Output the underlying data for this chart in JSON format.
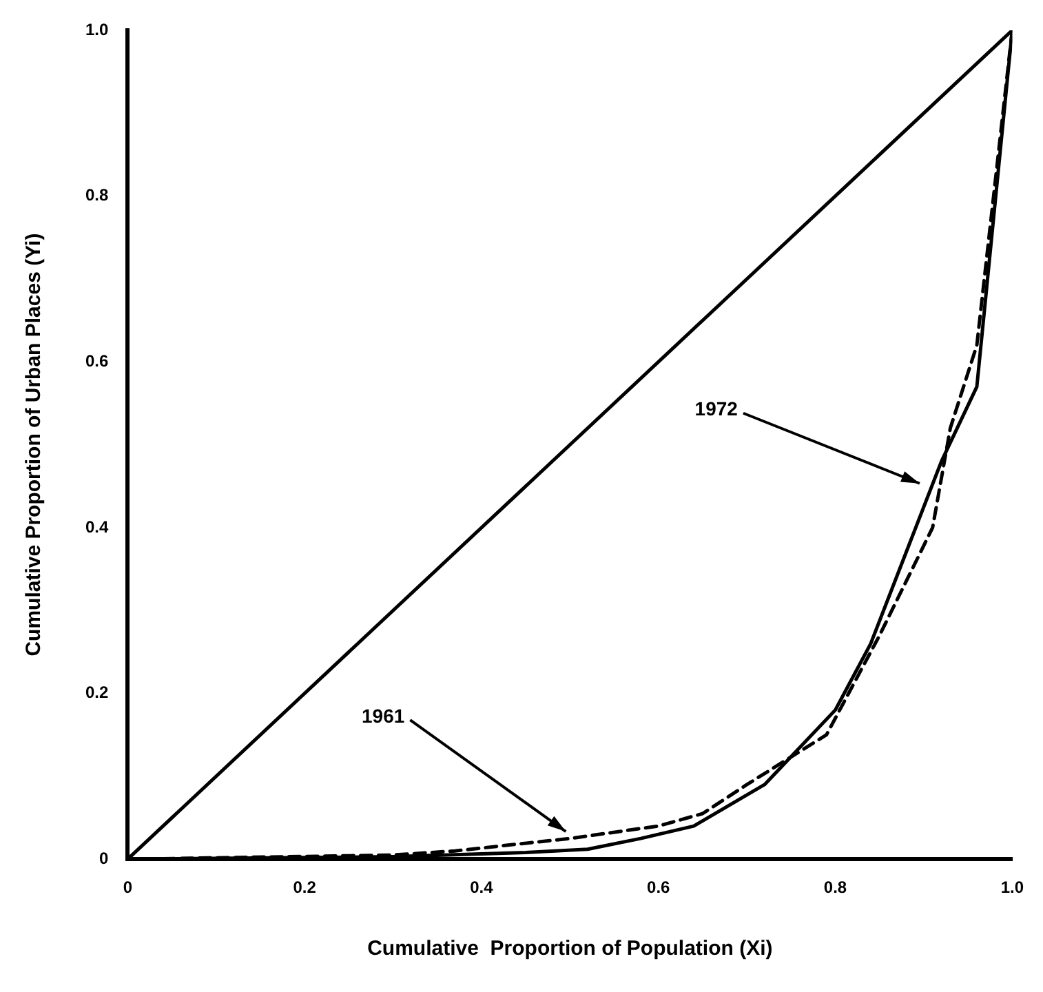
{
  "chart_data": {
    "type": "line",
    "xlabel": "Cumulative  Proportion of Population (Xi)",
    "ylabel": "Cumulative Proportion of Urban Places (Yi)",
    "xlim": [
      0,
      1
    ],
    "ylim": [
      0,
      1
    ],
    "xticks": [
      0,
      0.2,
      0.4,
      0.6,
      0.8,
      {
        "value": 1,
        "label": "1.0"
      }
    ],
    "yticks": [
      0,
      0.2,
      0.4,
      0.6,
      0.8,
      {
        "value": 1,
        "label": "1.0"
      }
    ],
    "grid": false,
    "legend": false,
    "marker": "none",
    "series": [
      {
        "color": "#000000",
        "line_style": "solid",
        "x": [
          0,
          1
        ],
        "values": [
          0,
          1
        ]
      },
      {
        "color": "#000000",
        "line_style": "solid",
        "x": [
          0,
          0.3,
          0.45,
          0.52,
          0.58,
          0.64,
          0.72,
          0.8,
          0.84,
          0.88,
          0.92,
          0.96,
          1
        ],
        "values": [
          0,
          0.003,
          0.008,
          0.012,
          0.025,
          0.04,
          0.09,
          0.18,
          0.26,
          0.37,
          0.48,
          0.57,
          1
        ]
      },
      {
        "color": "#000000",
        "line_style": "dashed",
        "x": [
          0,
          0.3,
          0.37,
          0.5,
          0.6,
          0.65,
          0.7,
          0.79,
          0.85,
          0.91,
          0.93,
          0.96,
          1
        ],
        "values": [
          0,
          0.005,
          0.01,
          0.025,
          0.04,
          0.055,
          0.09,
          0.15,
          0.27,
          0.4,
          0.52,
          0.62,
          1
        ]
      }
    ],
    "annotations": [
      {
        "text": "1972",
        "x": 0.9,
        "y": 0.45
      },
      {
        "text": "1961",
        "x": 0.5,
        "y": 0.03
      }
    ]
  }
}
